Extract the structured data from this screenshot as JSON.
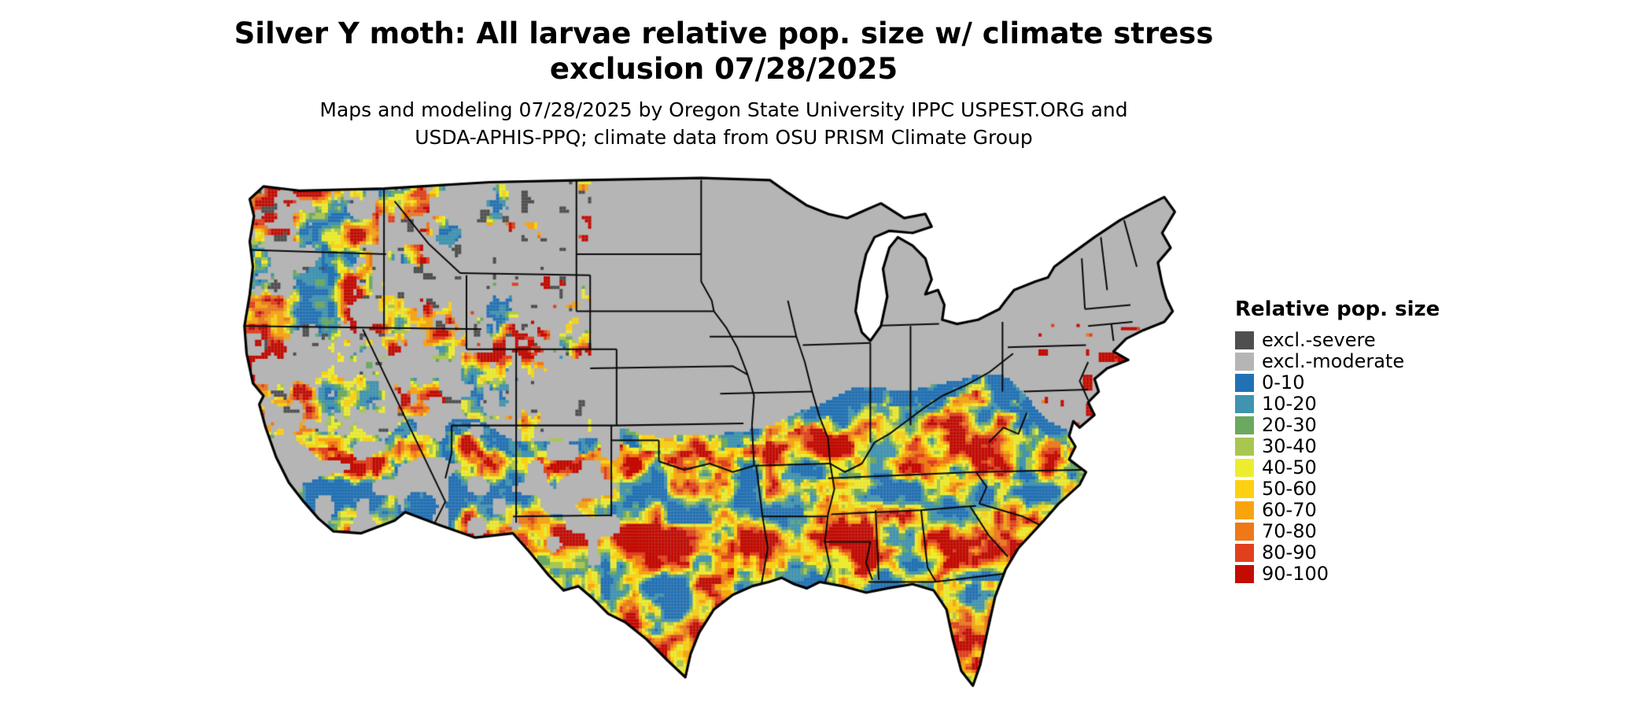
{
  "title": {
    "line1": "Silver Y moth: All larvae relative pop. size w/ climate stress",
    "line2": "exclusion 07/28/2025"
  },
  "subtitle": {
    "line1": "Maps and modeling 07/28/2025 by Oregon State University IPPC USPEST.ORG and",
    "line2": "USDA-APHIS-PPQ; climate data from OSU PRISM Climate Group"
  },
  "legend": {
    "title": "Relative pop. size",
    "entries": [
      {
        "label": "excl.-severe",
        "color": "#4f4f4f"
      },
      {
        "label": "excl.-moderate",
        "color": "#b5b5b5"
      },
      {
        "label": "0-10",
        "color": "#2171b5"
      },
      {
        "label": "10-20",
        "color": "#4094b0"
      },
      {
        "label": "20-30",
        "color": "#6aa95f"
      },
      {
        "label": "30-40",
        "color": "#a9c750"
      },
      {
        "label": "40-50",
        "color": "#eded2f"
      },
      {
        "label": "50-60",
        "color": "#fdd111"
      },
      {
        "label": "60-70",
        "color": "#f9a40e"
      },
      {
        "label": "70-80",
        "color": "#ef7917"
      },
      {
        "label": "80-90",
        "color": "#e1401f"
      },
      {
        "label": "90-100",
        "color": "#c30b02"
      }
    ]
  }
}
